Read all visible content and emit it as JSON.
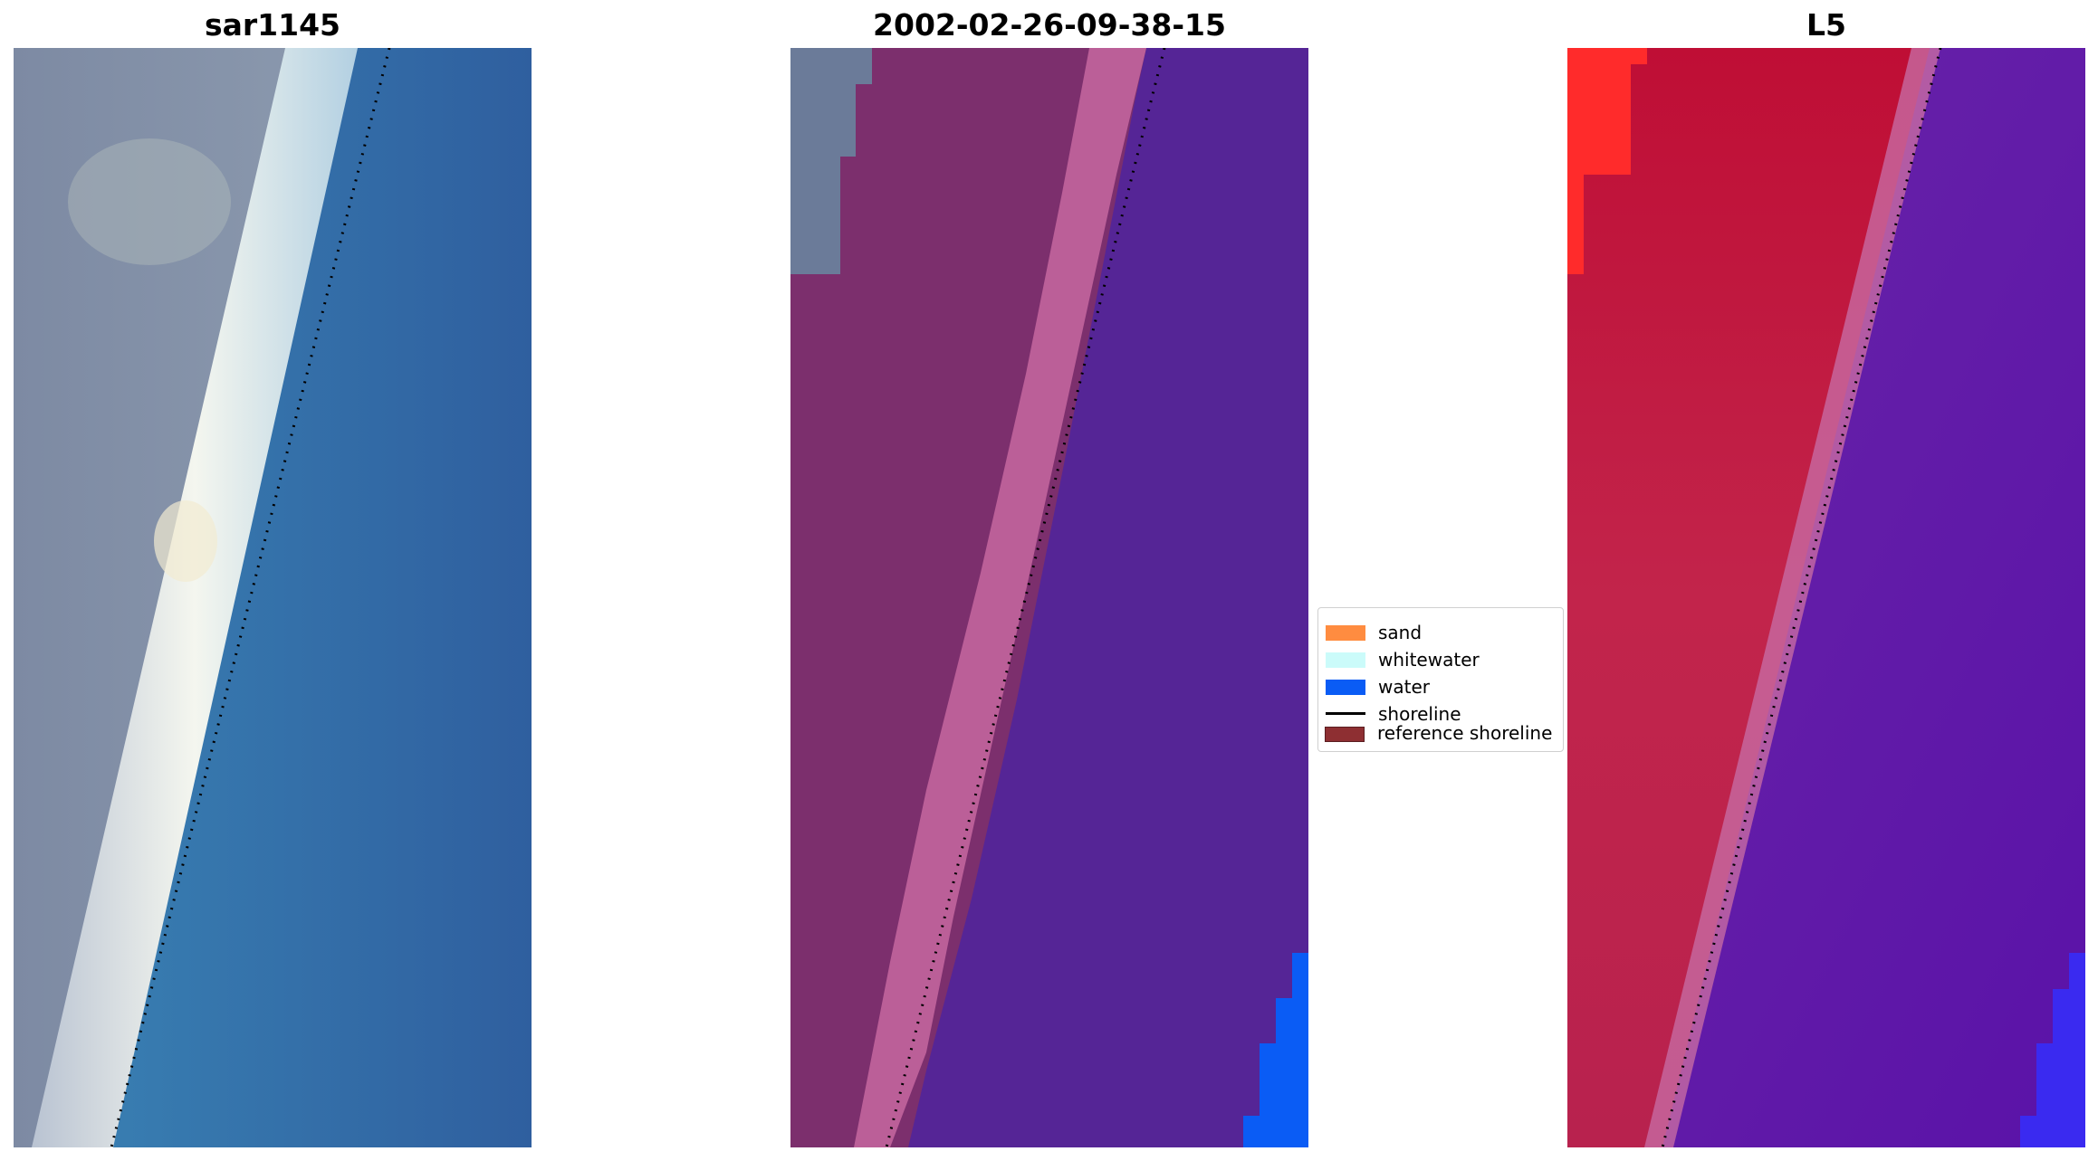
{
  "panels": [
    {
      "title": "sar1145"
    },
    {
      "title": "2002-02-26-09-38-15"
    },
    {
      "title": "L5"
    }
  ],
  "legend": {
    "items": [
      {
        "label": "sand",
        "color": "#ff8c40",
        "kind": "patch"
      },
      {
        "label": "whitewater",
        "color": "#cbfbfa",
        "kind": "patch"
      },
      {
        "label": "water",
        "color": "#0a5cf5",
        "kind": "patch"
      },
      {
        "label": "shoreline",
        "color": "#000000",
        "kind": "line"
      },
      {
        "label": "reference shoreline",
        "color": "#8e2f32",
        "kind": "patch"
      }
    ]
  }
}
